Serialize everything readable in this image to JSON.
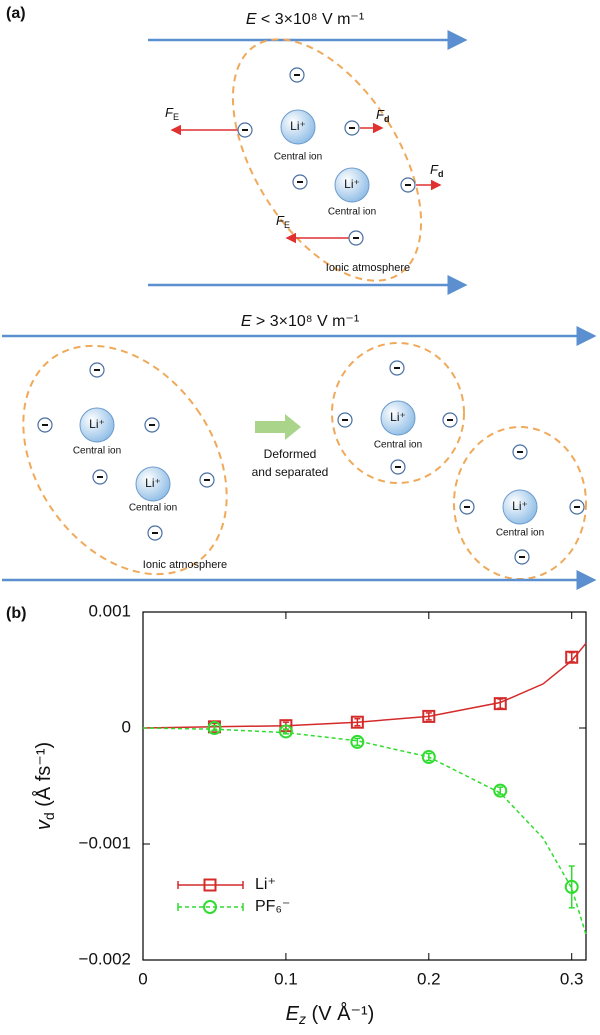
{
  "panel_a": {
    "label": "(a)",
    "field_low": {
      "symbol": "E",
      "rest": " < 3×10⁸ V m⁻¹"
    },
    "field_high": {
      "symbol": "E",
      "rest": " > 3×10⁸ V m⁻¹"
    },
    "central_ions": [
      {
        "label": "Li⁺",
        "caption": "Central ion"
      },
      {
        "label": "Li⁺",
        "caption": "Central ion"
      },
      {
        "label": "Li⁺",
        "caption": "Central ion"
      },
      {
        "label": "Li⁺",
        "caption": "Central ion"
      },
      {
        "label": "Li⁺",
        "caption": "Central ion"
      },
      {
        "label": "Li⁺",
        "caption": "Central ion"
      }
    ],
    "forces": [
      {
        "main": "F",
        "sub": "E"
      },
      {
        "main": "F",
        "sub": "d"
      },
      {
        "main": "F",
        "sub": "d"
      },
      {
        "main": "F",
        "sub": "E"
      }
    ],
    "atmosphere_labels": [
      "Ionic atmosphere",
      "Ionic atmosphere"
    ],
    "transition": [
      "Deformed",
      "and separated"
    ]
  },
  "chart_data": {
    "type": "scatter",
    "panel_label": "(b)",
    "x_label": {
      "main": "E",
      "sub": "z",
      "rest": " (V Å⁻¹)"
    },
    "y_label": {
      "main": "v",
      "sub": "d",
      "rest": " (Å fs⁻¹)"
    },
    "xlim": [
      0,
      0.31
    ],
    "xticks": [
      0,
      0.1,
      0.2,
      0.3
    ],
    "ylim": [
      -0.002,
      0.001
    ],
    "yticks": [
      {
        "value": -0.002,
        "label": "−0.002"
      },
      {
        "value": -0.001,
        "label": "−0.001"
      },
      0,
      0.001
    ],
    "legend": "lower left",
    "series": [
      {
        "name": "Li⁺",
        "color": "#d42a2a",
        "marker": "square",
        "line_style": "solid",
        "x": [
          0.05,
          0.1,
          0.15,
          0.2,
          0.25,
          0.3
        ],
        "values": [
          1e-05,
          2e-05,
          5e-05,
          0.0001,
          0.00021,
          0.00061
        ],
        "errors": [
          3e-05,
          3e-05,
          3e-05,
          3e-05,
          4e-05,
          4e-05
        ],
        "fit": {
          "x": [
            0,
            0.05,
            0.1,
            0.15,
            0.2,
            0.25,
            0.28,
            0.3,
            0.31
          ],
          "values": [
            0,
            1e-05,
            2e-05,
            5e-05,
            0.0001,
            0.00022,
            0.00038,
            0.00058,
            0.00073
          ]
        }
      },
      {
        "name": "PF₆⁻",
        "color": "#2fdc2f",
        "marker": "circle",
        "line_style": "dashed",
        "x": [
          0.05,
          0.1,
          0.15,
          0.2,
          0.25,
          0.3
        ],
        "values": [
          0,
          -3e-05,
          -0.00012,
          -0.00025,
          -0.00054,
          -0.00137
        ],
        "errors": [
          2e-05,
          2e-05,
          3e-05,
          3e-05,
          3e-05,
          0.00018
        ],
        "fit": {
          "x": [
            0,
            0.05,
            0.1,
            0.15,
            0.2,
            0.25,
            0.28,
            0.3,
            0.31
          ],
          "values": [
            0,
            -1e-05,
            -4e-05,
            -0.00011,
            -0.00025,
            -0.00056,
            -0.00095,
            -0.00138,
            -0.00178
          ]
        }
      }
    ]
  }
}
